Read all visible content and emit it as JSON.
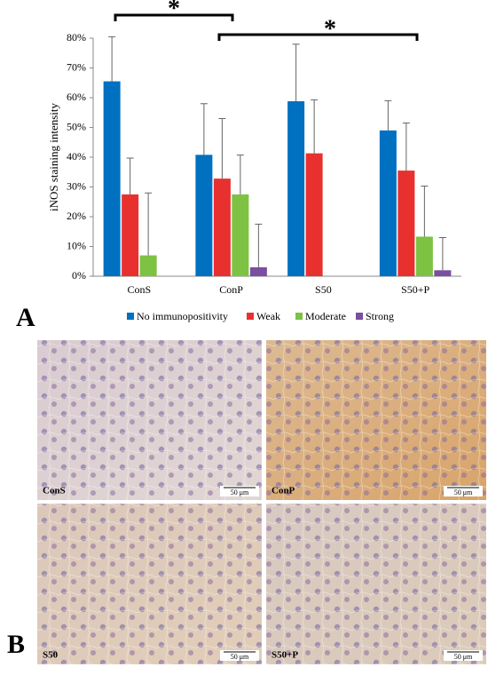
{
  "chart_data": {
    "type": "bar",
    "y_label": "iNOS staining intensity",
    "categories": [
      "ConS",
      "ConP",
      "S50",
      "S50+P"
    ],
    "series": [
      {
        "name": "No immunopositivity",
        "color": "#0070c0",
        "values": [
          65.5,
          40.8,
          58.8,
          49
        ],
        "errors": [
          15,
          17.2,
          19.2,
          10
        ]
      },
      {
        "name": "Weak",
        "color": "#e8312f",
        "values": [
          27.5,
          32.8,
          41.3,
          35.5
        ],
        "errors": [
          12.2,
          20.2,
          18,
          16
        ]
      },
      {
        "name": "Moderate",
        "color": "#7dc242",
        "values": [
          7,
          27.5,
          0,
          13.3
        ],
        "errors": [
          21,
          13.2,
          null,
          17
        ]
      },
      {
        "name": "Strong",
        "color": "#7a4ea0",
        "values": [
          0,
          3,
          0,
          2
        ],
        "errors": [
          null,
          14.5,
          null,
          11
        ]
      }
    ],
    "ylim": [
      0,
      80
    ],
    "yticks": [
      {
        "value": 0,
        "label": "0%"
      },
      {
        "value": 10,
        "label": "10%"
      },
      {
        "value": 20,
        "label": "20%"
      },
      {
        "value": 30,
        "label": "30%"
      },
      {
        "value": 40,
        "label": "40%"
      },
      {
        "value": 50,
        "label": "50%"
      },
      {
        "value": 60,
        "label": "60%"
      },
      {
        "value": 70,
        "label": "70%"
      },
      {
        "value": 80,
        "label": "80%"
      }
    ],
    "grid": false,
    "annotations": [
      "*",
      "*"
    ]
  },
  "panels": {
    "a_label": "A",
    "b_label": "B",
    "images": [
      {
        "label": "ConS",
        "scale": "50 μm"
      },
      {
        "label": "ConP",
        "scale": "50 μm"
      },
      {
        "label": "S50",
        "scale": "50 μm"
      },
      {
        "label": "S50+P",
        "scale": "50 μm"
      }
    ]
  }
}
